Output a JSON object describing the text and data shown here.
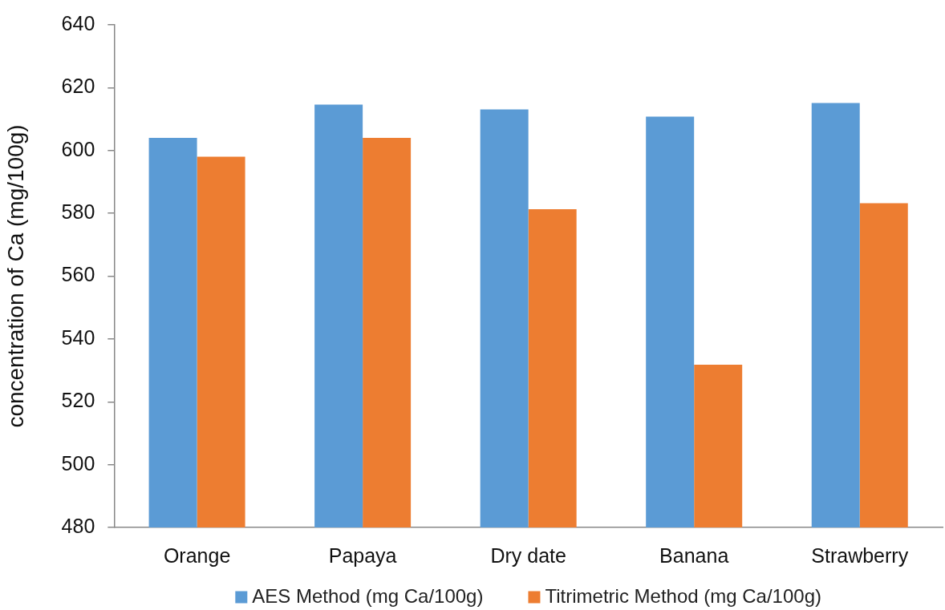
{
  "chart_data": {
    "type": "bar",
    "ylabel": "concentration of Ca (mg/100g)",
    "categories": [
      "Orange",
      "Papaya",
      "Dry date",
      "Banana",
      "Strawberry"
    ],
    "series": [
      {
        "name": "AES Method (mg Ca/100g)",
        "color": "#5b9bd5",
        "values": [
          604.0,
          614.6,
          613.1,
          610.8,
          615.1
        ]
      },
      {
        "name": "Titrimetric Method (mg Ca/100g)",
        "color": "#ed7d31",
        "values": [
          598.0,
          604.0,
          581.3,
          531.8,
          583.2
        ]
      }
    ],
    "ylim": [
      480,
      640
    ],
    "yticks": [
      480,
      500,
      520,
      540,
      560,
      580,
      600,
      620,
      640
    ],
    "legend": "bottom"
  }
}
